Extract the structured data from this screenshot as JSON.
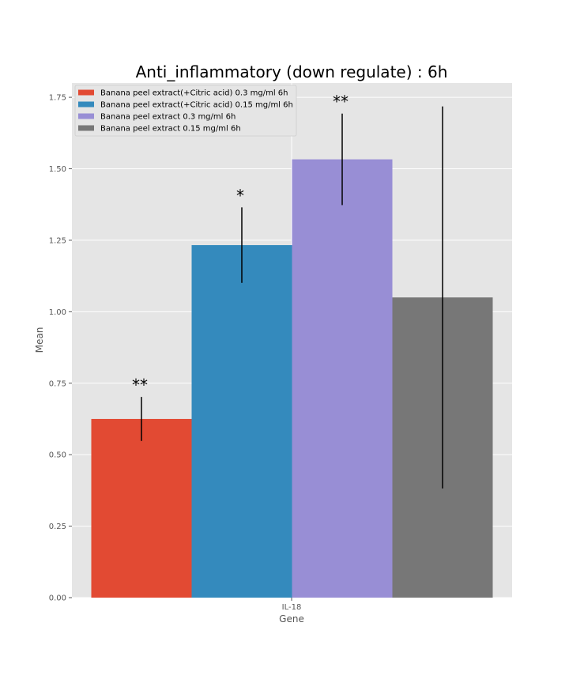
{
  "chart_data": {
    "type": "bar",
    "title": "Anti_inflammatory (down regulate) : 6h",
    "xlabel": "Gene",
    "ylabel": "Mean",
    "categories": [
      "IL-18"
    ],
    "ylim": [
      0,
      1.8
    ],
    "yticks": [
      "0.00",
      "0.25",
      "0.50",
      "0.75",
      "1.00",
      "1.25",
      "1.50",
      "1.75"
    ],
    "grid": true,
    "legend_position": "top-left",
    "series": [
      {
        "name": "Banana peel extract(+Citric acid) 0.3 mg/ml 6h",
        "values": [
          0.625
        ],
        "error": [
          0.077
        ],
        "significance": "**",
        "color": "#E24A33"
      },
      {
        "name": "Banana peel extract(+Citric acid) 0.15 mg/ml 6h",
        "values": [
          1.233
        ],
        "error": [
          0.132
        ],
        "significance": "*",
        "color": "#348ABD"
      },
      {
        "name": "Banana peel extract 0.3 mg/ml 6h",
        "values": [
          1.533
        ],
        "error": [
          0.16
        ],
        "significance": "**",
        "color": "#988ED5"
      },
      {
        "name": "Banana peel extract 0.15 mg/ml 6h",
        "values": [
          1.05
        ],
        "error": [
          0.668
        ],
        "significance": "",
        "color": "#777777"
      }
    ]
  }
}
